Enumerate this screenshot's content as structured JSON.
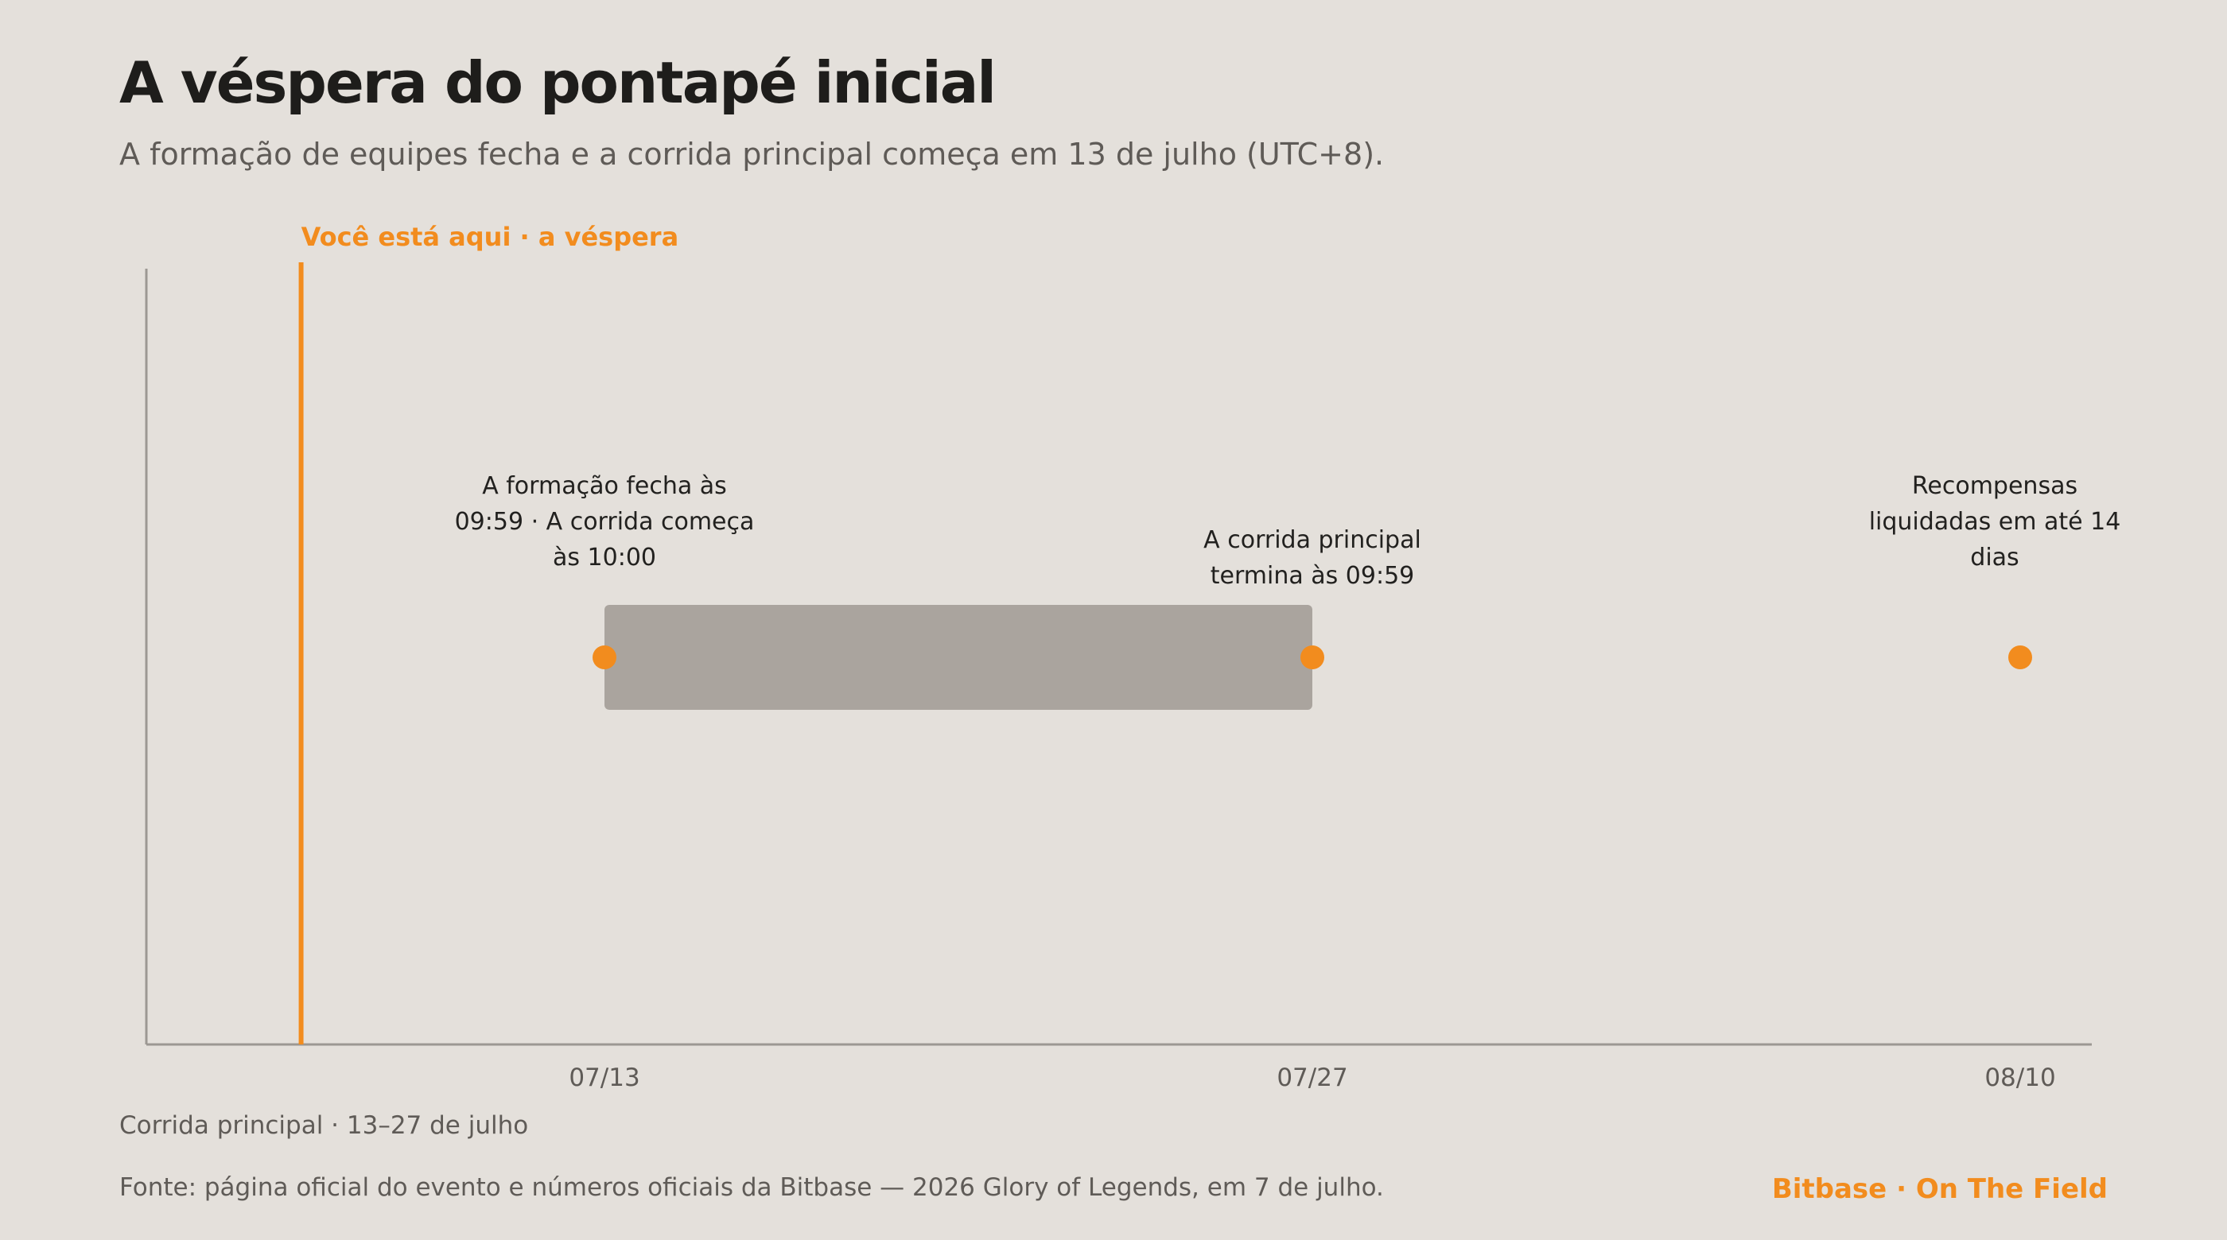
{
  "header": {
    "title": "A véspera do pontapé inicial",
    "subtitle": "A formação de equipes fecha e a corrida principal começa em 13 de julho (UTC+8)."
  },
  "chart_data": {
    "type": "timeline",
    "title": "A véspera do pontapé inicial",
    "x_ticks": [
      "07/13",
      "07/27",
      "08/10"
    ],
    "current_marker": {
      "label": "Você está aqui · a véspera",
      "date": "07/07"
    },
    "range_bar": {
      "start": "07/13",
      "end": "07/27",
      "caption": "Corrida principal · 13–27 de julho"
    },
    "events": [
      {
        "date": "07/13",
        "label_lines": [
          "A formação fecha às",
          "09:59 · A corrida começa",
          "às 10:00"
        ]
      },
      {
        "date": "07/27",
        "label_lines": [
          "A corrida principal",
          "termina às 09:59"
        ]
      },
      {
        "date": "08/10",
        "label_lines": [
          "Recompensas",
          "liquidadas em até 14",
          "dias"
        ]
      }
    ],
    "grid": false
  },
  "footer": {
    "bar_caption": "Corrida principal · 13–27 de julho",
    "source": "Fonte: página oficial do evento e números oficiais da Bitbase — 2026 Glory of Legends, em 7 de julho.",
    "brand": "Bitbase · On The Field"
  },
  "colors": {
    "background": "#e4e0db",
    "accent": "#f28c1e",
    "bar": "#aaa49e",
    "axis": "#9c9893",
    "title": "#1e1d1b",
    "muted_text": "#5f5b57"
  }
}
